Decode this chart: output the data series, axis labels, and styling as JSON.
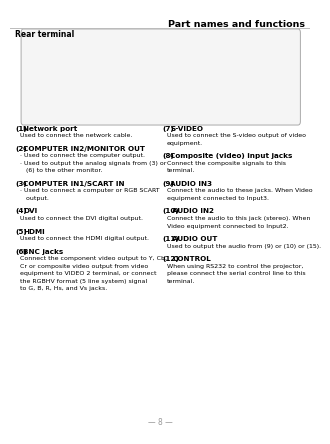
{
  "title": "Part names and functions",
  "subtitle": "Rear terminal",
  "bg_color": "#ffffff",
  "text_color": "#000000",
  "gray_color": "#999999",
  "header_line_color": "#bbbbbb",
  "image_border_color": "#aaaaaa",
  "image_bg_color": "#f5f5f5",
  "left_col": [
    {
      "num": "(1)",
      "bold": "Network port",
      "lines": [
        "Used to connect the network cable."
      ]
    },
    {
      "num": "(2)",
      "bold": "COMPUTER IN2/MONITOR OUT",
      "lines": [
        "· Used to connect the computer output.",
        "· Used to output the analog signals from (3) or",
        "   (6) to the other monitor."
      ]
    },
    {
      "num": "(3)",
      "bold": "COMPUTER IN1/SCART IN",
      "lines": [
        "· Used to connect a computer or RGB SCART",
        "   output."
      ]
    },
    {
      "num": "(4)",
      "bold": "DVI",
      "lines": [
        "Used to connect the DVI digital output."
      ]
    },
    {
      "num": "(5)",
      "bold": "HDMI",
      "lines": [
        "Used to connect the HDMI digital output."
      ]
    },
    {
      "num": "(6)",
      "bold": "BNC jacks",
      "lines": [
        "Connect the component video output to Y, Cb,",
        "Cr or composite video output from video",
        "equipment to VIDEO 2 terminal, or connect",
        "the RGBHV format (5 line system) signal",
        "to G, B, R, Hs, and Vs jacks."
      ]
    }
  ],
  "right_col": [
    {
      "num": "(7)",
      "bold": "S-VIDEO",
      "lines": [
        "Used to connect the S-video output of video",
        "equipment."
      ]
    },
    {
      "num": "(8)",
      "bold": "Composite (video) input jacks",
      "lines": [
        "Connect the composite signals to this",
        "terminal."
      ]
    },
    {
      "num": "(9)",
      "bold": "AUDIO IN3",
      "lines": [
        "Connect the audio to these jacks. When Video",
        "equipment connected to Input3."
      ]
    },
    {
      "num": "(10)",
      "bold": "AUDIO IN2",
      "lines": [
        "Connect the audio to this jack (stereo). When",
        "Video equipment connected to Input2."
      ]
    },
    {
      "num": "(11)",
      "bold": "AUDIO OUT",
      "lines": [
        "Used to output the audio from (9) or (10) or (15)."
      ]
    },
    {
      "num": "(12)",
      "bold": "CONTROL",
      "lines": [
        "When using RS232 to control the projector,",
        "please connect the serial control line to this",
        "terminal."
      ]
    }
  ],
  "page_num": "8"
}
